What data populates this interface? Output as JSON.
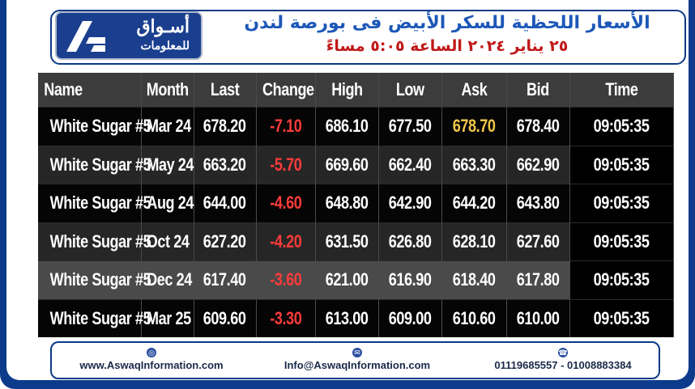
{
  "header": {
    "logo_ar_line1": "أسـواق",
    "logo_ar_line2": "للمعلومات",
    "title_line1": "الأسعار اللحظية للسكر الأبيض فى بورصة لندن",
    "title_line2": "٢٥ يناير ٢٠٢٤ الساعة ٥:٠٥ مساءً"
  },
  "table": {
    "columns": [
      "Name",
      "Month",
      "Last",
      "Change",
      "High",
      "Low",
      "Ask",
      "Bid",
      "Time"
    ],
    "rows": [
      [
        "White Sugar #5",
        "Mar 24",
        "678.20",
        "-7.10",
        "686.10",
        "677.50",
        "678.70",
        "678.40",
        "09:05:35"
      ],
      [
        "White Sugar #5",
        "May 24",
        "663.20",
        "-5.70",
        "669.60",
        "662.40",
        "663.30",
        "662.90",
        "09:05:35"
      ],
      [
        "White Sugar #5",
        "Aug 24",
        "644.00",
        "-4.60",
        "648.80",
        "642.90",
        "644.20",
        "643.80",
        "09:05:35"
      ],
      [
        "White Sugar #5",
        "Oct 24",
        "627.20",
        "-4.20",
        "631.50",
        "626.80",
        "628.10",
        "627.60",
        "09:05:35"
      ],
      [
        "White Sugar #5",
        "Dec 24",
        "617.40",
        "-3.60",
        "621.00",
        "616.90",
        "618.40",
        "617.80",
        "09:05:35"
      ],
      [
        "White Sugar #5",
        "Mar 25",
        "609.60",
        "-3.30",
        "613.00",
        "609.00",
        "610.60",
        "610.00",
        "09:05:35"
      ]
    ]
  },
  "footer": {
    "website": "www.AswaqInformation.com",
    "email": "Info@AswaqInformation.com",
    "phones": "01119685557 - 01008883384",
    "icons": [
      "globe-icon",
      "envelope-icon",
      "phone-icon"
    ]
  },
  "colors": {
    "frame_blue": "#0d3b8c",
    "title_blue": "#1d58b8",
    "title_red": "#c01818",
    "change_red": "#ff3b3b",
    "ask_highlight": "#f5c84a"
  }
}
